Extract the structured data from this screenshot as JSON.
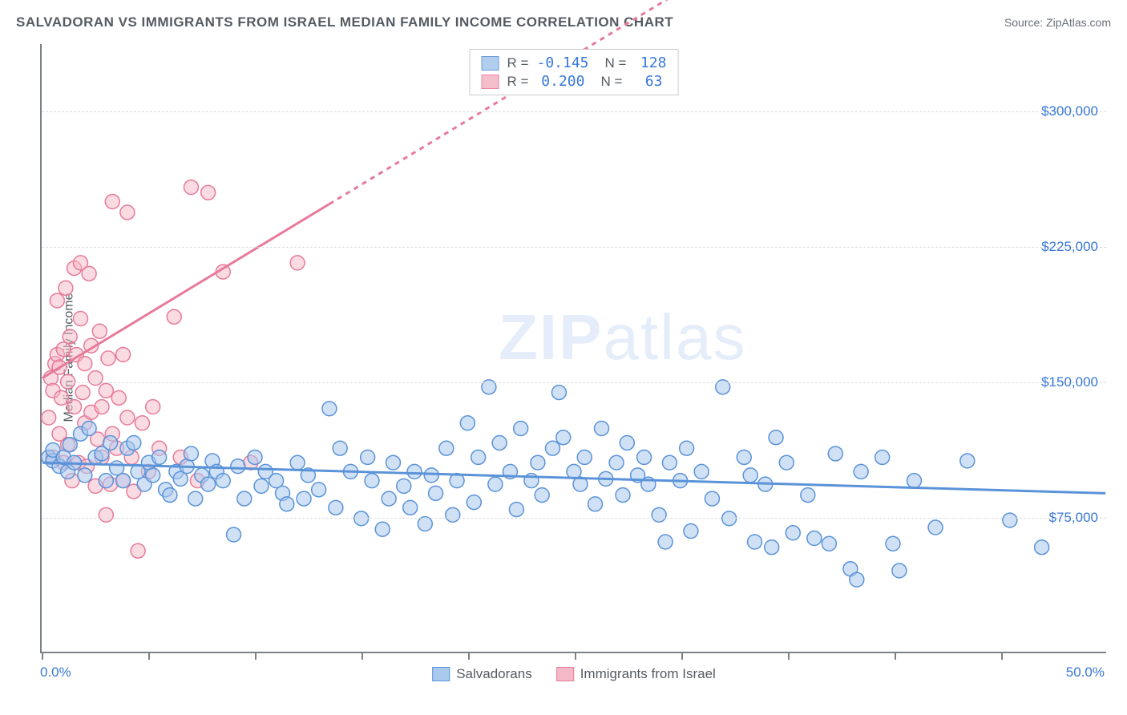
{
  "title": "SALVADORAN VS IMMIGRANTS FROM ISRAEL MEDIAN FAMILY INCOME CORRELATION CHART",
  "source_prefix": "Source: ",
  "source_name": "ZipAtlas.com",
  "ylabel": "Median Family Income",
  "watermark_bold": "ZIP",
  "watermark_light": "atlas",
  "chart": {
    "type": "scatter",
    "background_color": "#ffffff",
    "grid_color": "#d7dbdf",
    "grid_dash": "4,4",
    "axis_color": "#7c8187",
    "tick_label_color": "#3878d6",
    "text_color": "#555b62",
    "xlim": [
      0.0,
      50.0
    ],
    "ylim": [
      0,
      337500
    ],
    "y_gridlines": [
      75000,
      150000,
      225000,
      300000
    ],
    "y_tick_labels": [
      "$75,000",
      "$150,000",
      "$225,000",
      "$300,000"
    ],
    "x_ticks_pct": [
      0,
      5,
      10,
      15,
      20,
      25,
      30,
      35,
      40,
      45
    ],
    "x_min_label": "0.0%",
    "x_max_label": "50.0%",
    "marker_radius": 9,
    "marker_stroke_width": 1.5,
    "trend_line_width": 3,
    "series": [
      {
        "key": "salvadorans",
        "label": "Salvadorans",
        "fill": "#a9c9ee",
        "stroke": "#5a93d8",
        "fill_opacity": 0.55,
        "R": "-0.145",
        "N": "128",
        "trend": {
          "x1": 0.0,
          "y1": 105000,
          "x2": 50.0,
          "y2": 88000,
          "dashed_from_x": null
        },
        "points": [
          [
            0.3,
            108000
          ],
          [
            0.5,
            106000
          ],
          [
            0.5,
            112000
          ],
          [
            0.8,
            103000
          ],
          [
            1.0,
            108000
          ],
          [
            1.2,
            100000
          ],
          [
            1.3,
            115000
          ],
          [
            1.5,
            105000
          ],
          [
            1.8,
            121000
          ],
          [
            2.0,
            98000
          ],
          [
            2.2,
            124000
          ],
          [
            2.5,
            108000
          ],
          [
            2.8,
            110000
          ],
          [
            3.0,
            95000
          ],
          [
            3.2,
            116000
          ],
          [
            3.5,
            102000
          ],
          [
            3.8,
            95000
          ],
          [
            4.0,
            113000
          ],
          [
            4.3,
            116000
          ],
          [
            4.5,
            100000
          ],
          [
            4.8,
            93000
          ],
          [
            5.0,
            105000
          ],
          [
            5.2,
            98000
          ],
          [
            5.5,
            108000
          ],
          [
            5.8,
            90000
          ],
          [
            6.0,
            87000
          ],
          [
            6.3,
            100000
          ],
          [
            6.5,
            96000
          ],
          [
            6.8,
            103000
          ],
          [
            7.0,
            110000
          ],
          [
            7.2,
            85000
          ],
          [
            7.5,
            98000
          ],
          [
            7.8,
            93000
          ],
          [
            8.0,
            106000
          ],
          [
            8.2,
            100000
          ],
          [
            8.5,
            95000
          ],
          [
            9.0,
            65000
          ],
          [
            9.2,
            103000
          ],
          [
            9.5,
            85000
          ],
          [
            10.0,
            108000
          ],
          [
            10.3,
            92000
          ],
          [
            10.5,
            100000
          ],
          [
            11.0,
            95000
          ],
          [
            11.3,
            88000
          ],
          [
            11.5,
            82000
          ],
          [
            12.0,
            105000
          ],
          [
            12.3,
            85000
          ],
          [
            12.5,
            98000
          ],
          [
            13.0,
            90000
          ],
          [
            13.5,
            135000
          ],
          [
            13.8,
            80000
          ],
          [
            14.0,
            113000
          ],
          [
            14.5,
            100000
          ],
          [
            15.0,
            74000
          ],
          [
            15.3,
            108000
          ],
          [
            15.5,
            95000
          ],
          [
            16.0,
            68000
          ],
          [
            16.3,
            85000
          ],
          [
            16.5,
            105000
          ],
          [
            17.0,
            92000
          ],
          [
            17.3,
            80000
          ],
          [
            17.5,
            100000
          ],
          [
            18.0,
            71000
          ],
          [
            18.3,
            98000
          ],
          [
            18.5,
            88000
          ],
          [
            19.0,
            113000
          ],
          [
            19.3,
            76000
          ],
          [
            19.5,
            95000
          ],
          [
            20.0,
            127000
          ],
          [
            20.3,
            83000
          ],
          [
            20.5,
            108000
          ],
          [
            21.0,
            147000
          ],
          [
            21.3,
            93000
          ],
          [
            21.5,
            116000
          ],
          [
            22.0,
            100000
          ],
          [
            22.3,
            79000
          ],
          [
            22.5,
            124000
          ],
          [
            23.0,
            95000
          ],
          [
            23.3,
            105000
          ],
          [
            23.5,
            87000
          ],
          [
            24.0,
            113000
          ],
          [
            24.3,
            144000
          ],
          [
            24.5,
            119000
          ],
          [
            25.0,
            100000
          ],
          [
            25.3,
            93000
          ],
          [
            25.5,
            108000
          ],
          [
            26.0,
            82000
          ],
          [
            26.3,
            124000
          ],
          [
            26.5,
            96000
          ],
          [
            27.0,
            105000
          ],
          [
            27.3,
            87000
          ],
          [
            27.5,
            116000
          ],
          [
            28.0,
            98000
          ],
          [
            28.3,
            108000
          ],
          [
            28.5,
            93000
          ],
          [
            29.0,
            76000
          ],
          [
            29.3,
            61000
          ],
          [
            29.5,
            105000
          ],
          [
            30.0,
            95000
          ],
          [
            30.3,
            113000
          ],
          [
            30.5,
            67000
          ],
          [
            31.0,
            100000
          ],
          [
            31.5,
            85000
          ],
          [
            32.0,
            147000
          ],
          [
            32.3,
            74000
          ],
          [
            33.0,
            108000
          ],
          [
            33.3,
            98000
          ],
          [
            33.5,
            61000
          ],
          [
            34.0,
            93000
          ],
          [
            34.3,
            58000
          ],
          [
            34.5,
            119000
          ],
          [
            35.0,
            105000
          ],
          [
            35.3,
            66000
          ],
          [
            36.0,
            87000
          ],
          [
            36.3,
            63000
          ],
          [
            37.0,
            60000
          ],
          [
            37.3,
            110000
          ],
          [
            38.0,
            46000
          ],
          [
            38.3,
            40000
          ],
          [
            38.5,
            100000
          ],
          [
            39.5,
            108000
          ],
          [
            40.0,
            60000
          ],
          [
            40.3,
            45000
          ],
          [
            41.0,
            95000
          ],
          [
            42.0,
            69000
          ],
          [
            43.5,
            106000
          ],
          [
            45.5,
            73000
          ],
          [
            47.0,
            58000
          ]
        ]
      },
      {
        "key": "israel",
        "label": "Immigrants from Israel",
        "fill": "#f5b8c6",
        "stroke": "#e77a99",
        "fill_opacity": 0.5,
        "R": "0.200",
        "N": "63",
        "trend": {
          "x1": 0.0,
          "y1": 152000,
          "x2": 50.0,
          "y2": 510000,
          "dashed_from_x": 13.5
        },
        "points": [
          [
            0.3,
            130000
          ],
          [
            0.4,
            152000
          ],
          [
            0.5,
            108000
          ],
          [
            0.5,
            145000
          ],
          [
            0.6,
            160000
          ],
          [
            0.7,
            165000
          ],
          [
            0.7,
            195000
          ],
          [
            0.8,
            121000
          ],
          [
            0.8,
            158000
          ],
          [
            0.9,
            141000
          ],
          [
            1.0,
            105000
          ],
          [
            1.0,
            168000
          ],
          [
            1.1,
            202000
          ],
          [
            1.2,
            115000
          ],
          [
            1.2,
            150000
          ],
          [
            1.3,
            175000
          ],
          [
            1.4,
            95000
          ],
          [
            1.5,
            136000
          ],
          [
            1.5,
            213000
          ],
          [
            1.6,
            165000
          ],
          [
            1.7,
            105000
          ],
          [
            1.8,
            185000
          ],
          [
            1.8,
            216000
          ],
          [
            1.9,
            144000
          ],
          [
            2.0,
            127000
          ],
          [
            2.0,
            160000
          ],
          [
            2.1,
            103000
          ],
          [
            2.2,
            210000
          ],
          [
            2.3,
            133000
          ],
          [
            2.3,
            170000
          ],
          [
            2.5,
            152000
          ],
          [
            2.5,
            92000
          ],
          [
            2.6,
            118000
          ],
          [
            2.7,
            178000
          ],
          [
            2.8,
            108000
          ],
          [
            2.8,
            136000
          ],
          [
            3.0,
            76000
          ],
          [
            3.0,
            145000
          ],
          [
            3.1,
            163000
          ],
          [
            3.2,
            93000
          ],
          [
            3.3,
            121000
          ],
          [
            3.3,
            250000
          ],
          [
            3.5,
            113000
          ],
          [
            3.6,
            141000
          ],
          [
            3.8,
            165000
          ],
          [
            3.8,
            95000
          ],
          [
            4.0,
            130000
          ],
          [
            4.0,
            244000
          ],
          [
            4.2,
            108000
          ],
          [
            4.3,
            89000
          ],
          [
            4.5,
            56000
          ],
          [
            4.7,
            127000
          ],
          [
            5.0,
            100000
          ],
          [
            5.2,
            136000
          ],
          [
            5.5,
            113000
          ],
          [
            6.2,
            186000
          ],
          [
            6.5,
            108000
          ],
          [
            7.0,
            258000
          ],
          [
            7.3,
            95000
          ],
          [
            7.8,
            255000
          ],
          [
            8.5,
            211000
          ],
          [
            9.8,
            105000
          ],
          [
            12.0,
            216000
          ]
        ]
      }
    ]
  }
}
